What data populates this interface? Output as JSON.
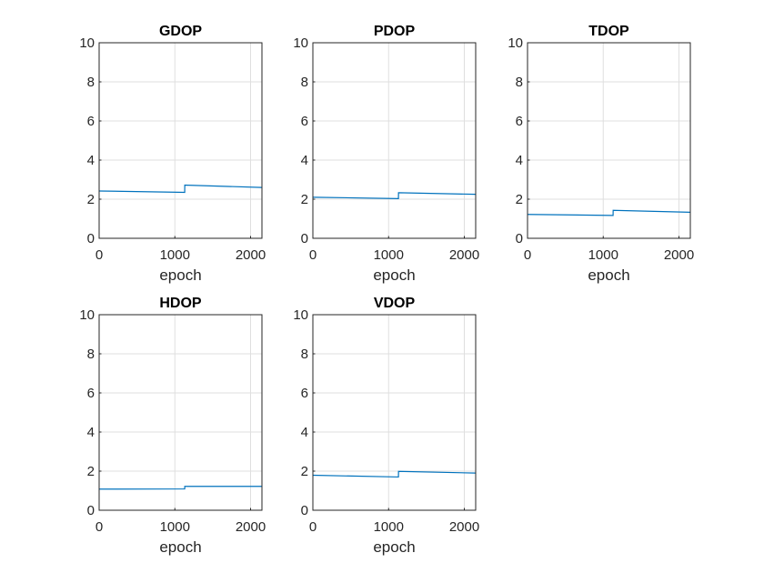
{
  "chart_data": [
    {
      "type": "line",
      "title": "GDOP",
      "xlabel": "epoch",
      "ylabel": "",
      "xlim": [
        0,
        2150
      ],
      "ylim": [
        0,
        10
      ],
      "xticks": [
        0,
        1000,
        2000
      ],
      "yticks": [
        0,
        2,
        4,
        6,
        8,
        10
      ],
      "grid": true,
      "series": [
        {
          "x": [
            0,
            1130,
            1131,
            2150
          ],
          "y": [
            2.42,
            2.35,
            2.72,
            2.6
          ]
        }
      ]
    },
    {
      "type": "line",
      "title": "PDOP",
      "xlabel": "epoch",
      "ylabel": "",
      "xlim": [
        0,
        2150
      ],
      "ylim": [
        0,
        10
      ],
      "xticks": [
        0,
        1000,
        2000
      ],
      "yticks": [
        0,
        2,
        4,
        6,
        8,
        10
      ],
      "grid": true,
      "series": [
        {
          "x": [
            0,
            1130,
            1131,
            2150
          ],
          "y": [
            2.1,
            2.03,
            2.33,
            2.25
          ]
        }
      ]
    },
    {
      "type": "line",
      "title": "TDOP",
      "xlabel": "epoch",
      "ylabel": "",
      "xlim": [
        0,
        2150
      ],
      "ylim": [
        0,
        10
      ],
      "xticks": [
        0,
        1000,
        2000
      ],
      "yticks": [
        0,
        2,
        4,
        6,
        8,
        10
      ],
      "grid": true,
      "series": [
        {
          "x": [
            0,
            1130,
            1131,
            2150
          ],
          "y": [
            1.22,
            1.17,
            1.43,
            1.33
          ]
        }
      ]
    },
    {
      "type": "line",
      "title": "HDOP",
      "xlabel": "epoch",
      "ylabel": "",
      "xlim": [
        0,
        2150
      ],
      "ylim": [
        0,
        10
      ],
      "xticks": [
        0,
        1000,
        2000
      ],
      "yticks": [
        0,
        2,
        4,
        6,
        8,
        10
      ],
      "grid": true,
      "series": [
        {
          "x": [
            0,
            1130,
            1131,
            2150
          ],
          "y": [
            1.08,
            1.09,
            1.22,
            1.22
          ]
        }
      ]
    },
    {
      "type": "line",
      "title": "VDOP",
      "xlabel": "epoch",
      "ylabel": "",
      "xlim": [
        0,
        2150
      ],
      "ylim": [
        0,
        10
      ],
      "xticks": [
        0,
        1000,
        2000
      ],
      "yticks": [
        0,
        2,
        4,
        6,
        8,
        10
      ],
      "grid": true,
      "series": [
        {
          "x": [
            0,
            1130,
            1131,
            2150
          ],
          "y": [
            1.79,
            1.7,
            1.99,
            1.9
          ]
        }
      ]
    }
  ],
  "colors": {
    "line": "#0072BD",
    "grid": "#dfdfdf",
    "axis": "#262626"
  }
}
